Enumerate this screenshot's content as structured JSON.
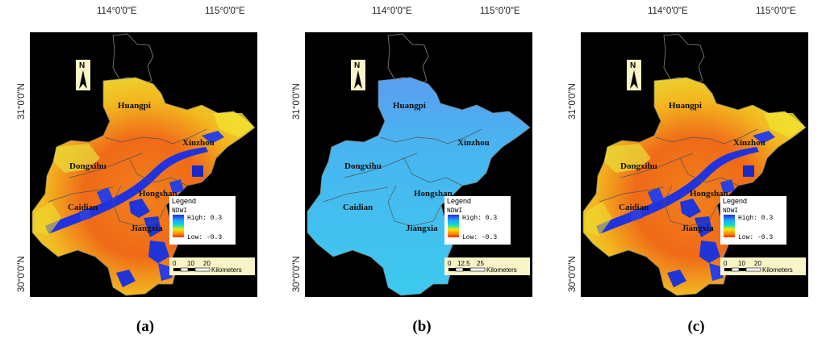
{
  "graticule": {
    "lon_left": "114°0'0\"E",
    "lon_right": "115°0'0\"E",
    "lat_top": "31°0'0\"N",
    "lat_bottom": "30°0'0\"N"
  },
  "districts": {
    "huangpi": "Huangpi",
    "xinzhou": "Xinzhou",
    "dongxihu": "Dongxihu",
    "caidian": "Caidian",
    "hongshan": "Hongshan",
    "jiangxia": "Jiangxia"
  },
  "legend": {
    "title": "Legend",
    "field": "NDWI",
    "high": "High: 0.3",
    "low": "Low: -0.3",
    "ramp_colors": [
      "#1a2fd6",
      "#2aa0ff",
      "#00e0d0",
      "#f5e600",
      "#ff8a00",
      "#ff2a00"
    ]
  },
  "north_label": "N",
  "panels": [
    {
      "caption": "(a)",
      "scale_ticks": [
        "0",
        "10",
        "20"
      ],
      "scale_unit": "Kilometers",
      "fill": "heat"
    },
    {
      "caption": "(b)",
      "scale_ticks": [
        "0",
        "12.5",
        "25"
      ],
      "scale_unit": "Kilometers",
      "fill": "cyan"
    },
    {
      "caption": "(c)",
      "scale_ticks": [
        "0",
        "10",
        "20"
      ],
      "scale_unit": "Kilometers",
      "fill": "heat"
    }
  ],
  "colors": {
    "background": "#000000",
    "heat_base": "#f06a18",
    "heat_mid": "#f5d020",
    "water": "#2233dd",
    "cyan_base": "#3cc6ee",
    "cyan_north": "#5aa8f2",
    "legend_bg": "#ffffff",
    "scale_bg": "#f8f4c8",
    "north_bg": "#f8f4c8"
  }
}
